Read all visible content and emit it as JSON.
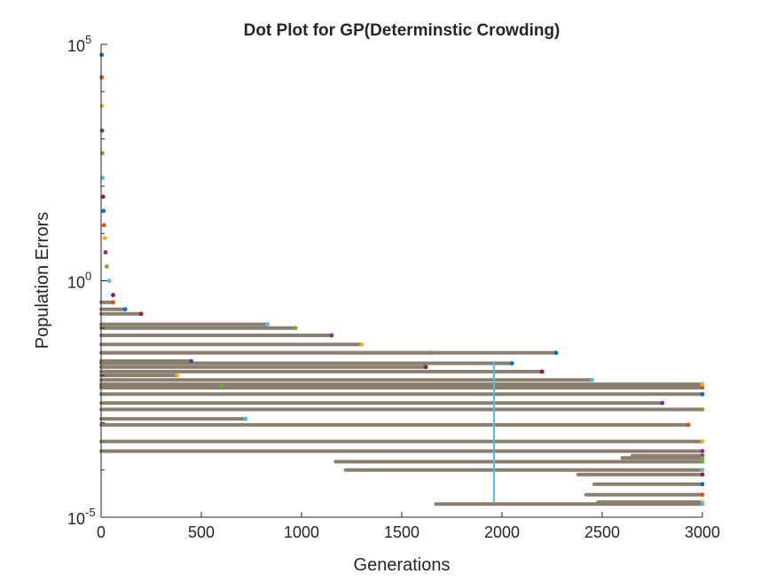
{
  "chart_data": {
    "type": "scatter",
    "title": "Dot Plot for GP(Determinstic Crowding)",
    "xlabel": "Generations",
    "ylabel": "Population Errors",
    "xlim": [
      0,
      3000
    ],
    "ylim": [
      1e-05,
      100000
    ],
    "yscale": "log",
    "grid": false,
    "legend": "none",
    "x_ticks": [
      {
        "value": 0,
        "label": "0"
      },
      {
        "value": 500,
        "label": "500"
      },
      {
        "value": 1000,
        "label": "1000"
      },
      {
        "value": 1500,
        "label": "1500"
      },
      {
        "value": 2000,
        "label": "2000"
      },
      {
        "value": 2500,
        "label": "2500"
      },
      {
        "value": 3000,
        "label": "3000"
      }
    ],
    "y_ticks": [
      {
        "value": 1e-05,
        "base": "10",
        "exp": "-5"
      },
      {
        "value": 1,
        "base": "10",
        "exp": "0"
      },
      {
        "value": 100000,
        "base": "10",
        "exp": "5"
      }
    ],
    "dot_color": "#8a7f6e",
    "accent_colors": [
      "#0072bd",
      "#d95319",
      "#edb120",
      "#7e2f8e",
      "#77ac30",
      "#4dbeee",
      "#a2142f"
    ],
    "series": [
      {
        "x": [
          0,
          3000
        ],
        "y": 0.004
      },
      {
        "x": [
          0,
          3000
        ],
        "y": 0.0055
      },
      {
        "x": [
          0,
          3000
        ],
        "y": 0.0065
      },
      {
        "x": [
          0,
          2800
        ],
        "y": 0.0026
      },
      {
        "x": [
          0,
          3000
        ],
        "y": 0.0019
      },
      {
        "x": [
          0,
          2450
        ],
        "y": 0.008
      },
      {
        "x": [
          0,
          2200
        ],
        "y": 0.012
      },
      {
        "x": [
          0,
          2050
        ],
        "y": 0.018
      },
      {
        "x": [
          0,
          1650
        ],
        "y": 0.03
      },
      {
        "x": [
          0,
          1300
        ],
        "y": 0.045
      },
      {
        "x": [
          0,
          1150
        ],
        "y": 0.07
      },
      {
        "x": [
          0,
          970
        ],
        "y": 0.1
      },
      {
        "x": [
          0,
          830
        ],
        "y": 0.12
      },
      {
        "x": [
          0,
          1620
        ],
        "y": 0.015
      },
      {
        "x": [
          0,
          2270
        ],
        "y": 0.03
      },
      {
        "x": [
          0,
          2930
        ],
        "y": 0.0009
      },
      {
        "x": [
          0,
          3000
        ],
        "y": 0.0004
      },
      {
        "x": [
          0,
          3000
        ],
        "y": 0.00025
      },
      {
        "x": [
          1170,
          3000
        ],
        "y": 0.00015
      },
      {
        "x": [
          1220,
          3000
        ],
        "y": 0.0001
      },
      {
        "x": [
          2380,
          3000
        ],
        "y": 8e-05
      },
      {
        "x": [
          2460,
          3000
        ],
        "y": 5e-05
      },
      {
        "x": [
          2420,
          3000
        ],
        "y": 3e-05
      },
      {
        "x": [
          2480,
          3000
        ],
        "y": 2.1e-05
      },
      {
        "x": [
          2650,
          3000
        ],
        "y": 0.0002
      },
      {
        "x": [
          2600,
          3000
        ],
        "y": 0.00018
      },
      {
        "x": [
          1670,
          3000
        ],
        "y": 1.9e-05
      },
      {
        "x": [
          0,
          200
        ],
        "y": 0.2
      },
      {
        "x": [
          0,
          120
        ],
        "y": 0.25
      },
      {
        "x": [
          0,
          60
        ],
        "y": 0.35
      },
      {
        "x": [
          0,
          380
        ],
        "y": 0.01
      },
      {
        "x": [
          0,
          450
        ],
        "y": 0.02
      },
      {
        "x": [
          0,
          600
        ],
        "y": 0.006
      },
      {
        "x": [
          0,
          720
        ],
        "y": 0.0012
      }
    ],
    "head_points": [
      {
        "x": 3,
        "y": 60000
      },
      {
        "x": 3,
        "y": 20000
      },
      {
        "x": 4,
        "y": 5000
      },
      {
        "x": 5,
        "y": 1500
      },
      {
        "x": 6,
        "y": 500
      },
      {
        "x": 8,
        "y": 150
      },
      {
        "x": 10,
        "y": 60
      },
      {
        "x": 12,
        "y": 30
      },
      {
        "x": 14,
        "y": 15
      },
      {
        "x": 18,
        "y": 8
      },
      {
        "x": 22,
        "y": 4
      },
      {
        "x": 28,
        "y": 2
      },
      {
        "x": 40,
        "y": 1
      },
      {
        "x": 60,
        "y": 0.5
      }
    ],
    "vertical_marker": {
      "x": 1960,
      "y_range": [
        2e-05,
        0.02
      ]
    }
  }
}
